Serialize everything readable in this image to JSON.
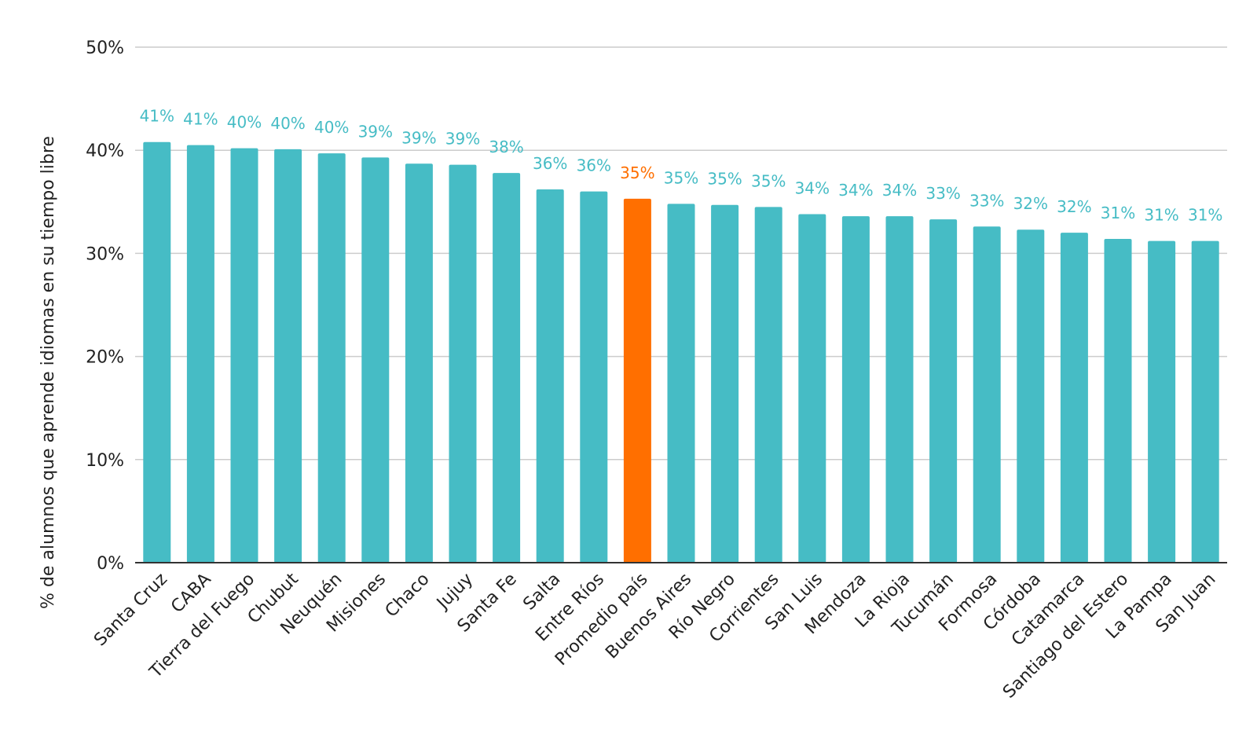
{
  "chart_data": {
    "type": "bar",
    "title": "",
    "xlabel": "",
    "ylabel": "% de alumnos que aprende idiomas en su tiempo libre",
    "ylim": [
      0,
      50
    ],
    "y_ticks": [
      "0%",
      "10%",
      "20%",
      "30%",
      "40%",
      "50%"
    ],
    "y_tick_values": [
      0,
      10,
      20,
      30,
      40,
      50
    ],
    "grid": true,
    "colors": {
      "default": "#46BCC5",
      "highlight": "#FF6F00",
      "grid": "#CCCCCC",
      "axis": "#333333"
    },
    "highlight_category": "Promedio país",
    "categories": [
      "Santa Cruz",
      "CABA",
      "Tierra del Fuego",
      "Chubut",
      "Neuquén",
      "Misiones",
      "Chaco",
      "Jujuy",
      "Santa Fe",
      "Salta",
      "Entre Ríos",
      "Promedio país",
      "Buenos Aires",
      "Río Negro",
      "Corrientes",
      "San Luis",
      "Mendoza",
      "La Rioja",
      "Tucumán",
      "Formosa",
      "Córdoba",
      "Catamarca",
      "Santiago del Estero",
      "La Pampa",
      "San Juan"
    ],
    "values": [
      40.8,
      40.5,
      40.2,
      40.1,
      39.7,
      39.3,
      38.7,
      38.6,
      37.8,
      36.2,
      36.0,
      35.3,
      34.8,
      34.7,
      34.5,
      33.8,
      33.6,
      33.6,
      33.3,
      32.6,
      32.3,
      32.0,
      31.4,
      31.2,
      31.2
    ],
    "data_labels": [
      "41%",
      "41%",
      "40%",
      "40%",
      "40%",
      "39%",
      "39%",
      "39%",
      "38%",
      "36%",
      "36%",
      "35%",
      "35%",
      "35%",
      "35%",
      "34%",
      "34%",
      "34%",
      "33%",
      "33%",
      "32%",
      "32%",
      "31%",
      "31%",
      "31%"
    ]
  }
}
